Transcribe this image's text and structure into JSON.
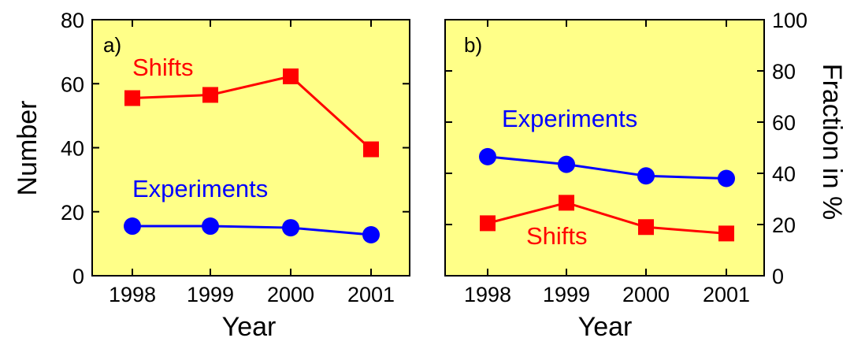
{
  "chart_data": [
    {
      "type": "line",
      "panel_label": "a)",
      "xlabel": "Year",
      "ylabel": "Number",
      "categories": [
        "1998",
        "1999",
        "2000",
        "2001"
      ],
      "ylim": [
        0,
        80
      ],
      "yticks": [
        "0",
        "20",
        "40",
        "60",
        "80"
      ],
      "grid": false,
      "background": "#ffff88",
      "series": [
        {
          "name": "Shifts",
          "color": "#ff0000",
          "marker": "square",
          "values": [
            55.5,
            56.5,
            62.3,
            39.5
          ]
        },
        {
          "name": "Experiments",
          "color": "#0000ff",
          "marker": "circle",
          "values": [
            15.5,
            15.5,
            15.0,
            12.8
          ]
        }
      ]
    },
    {
      "type": "line",
      "panel_label": "b)",
      "xlabel": "Year",
      "ylabel": "Fraction in %",
      "categories": [
        "1998",
        "1999",
        "2000",
        "2001"
      ],
      "ylim": [
        0,
        100
      ],
      "yticks": [
        "0",
        "20",
        "40",
        "60",
        "80",
        "100"
      ],
      "yaxis_side": "right",
      "grid": false,
      "background": "#ffff88",
      "series": [
        {
          "name": "Experiments",
          "color": "#0000ff",
          "marker": "circle",
          "values": [
            46.5,
            43.5,
            39.0,
            38.0
          ]
        },
        {
          "name": "Shifts",
          "color": "#ff0000",
          "marker": "square",
          "values": [
            20.5,
            28.5,
            19.0,
            16.5
          ]
        }
      ]
    }
  ]
}
